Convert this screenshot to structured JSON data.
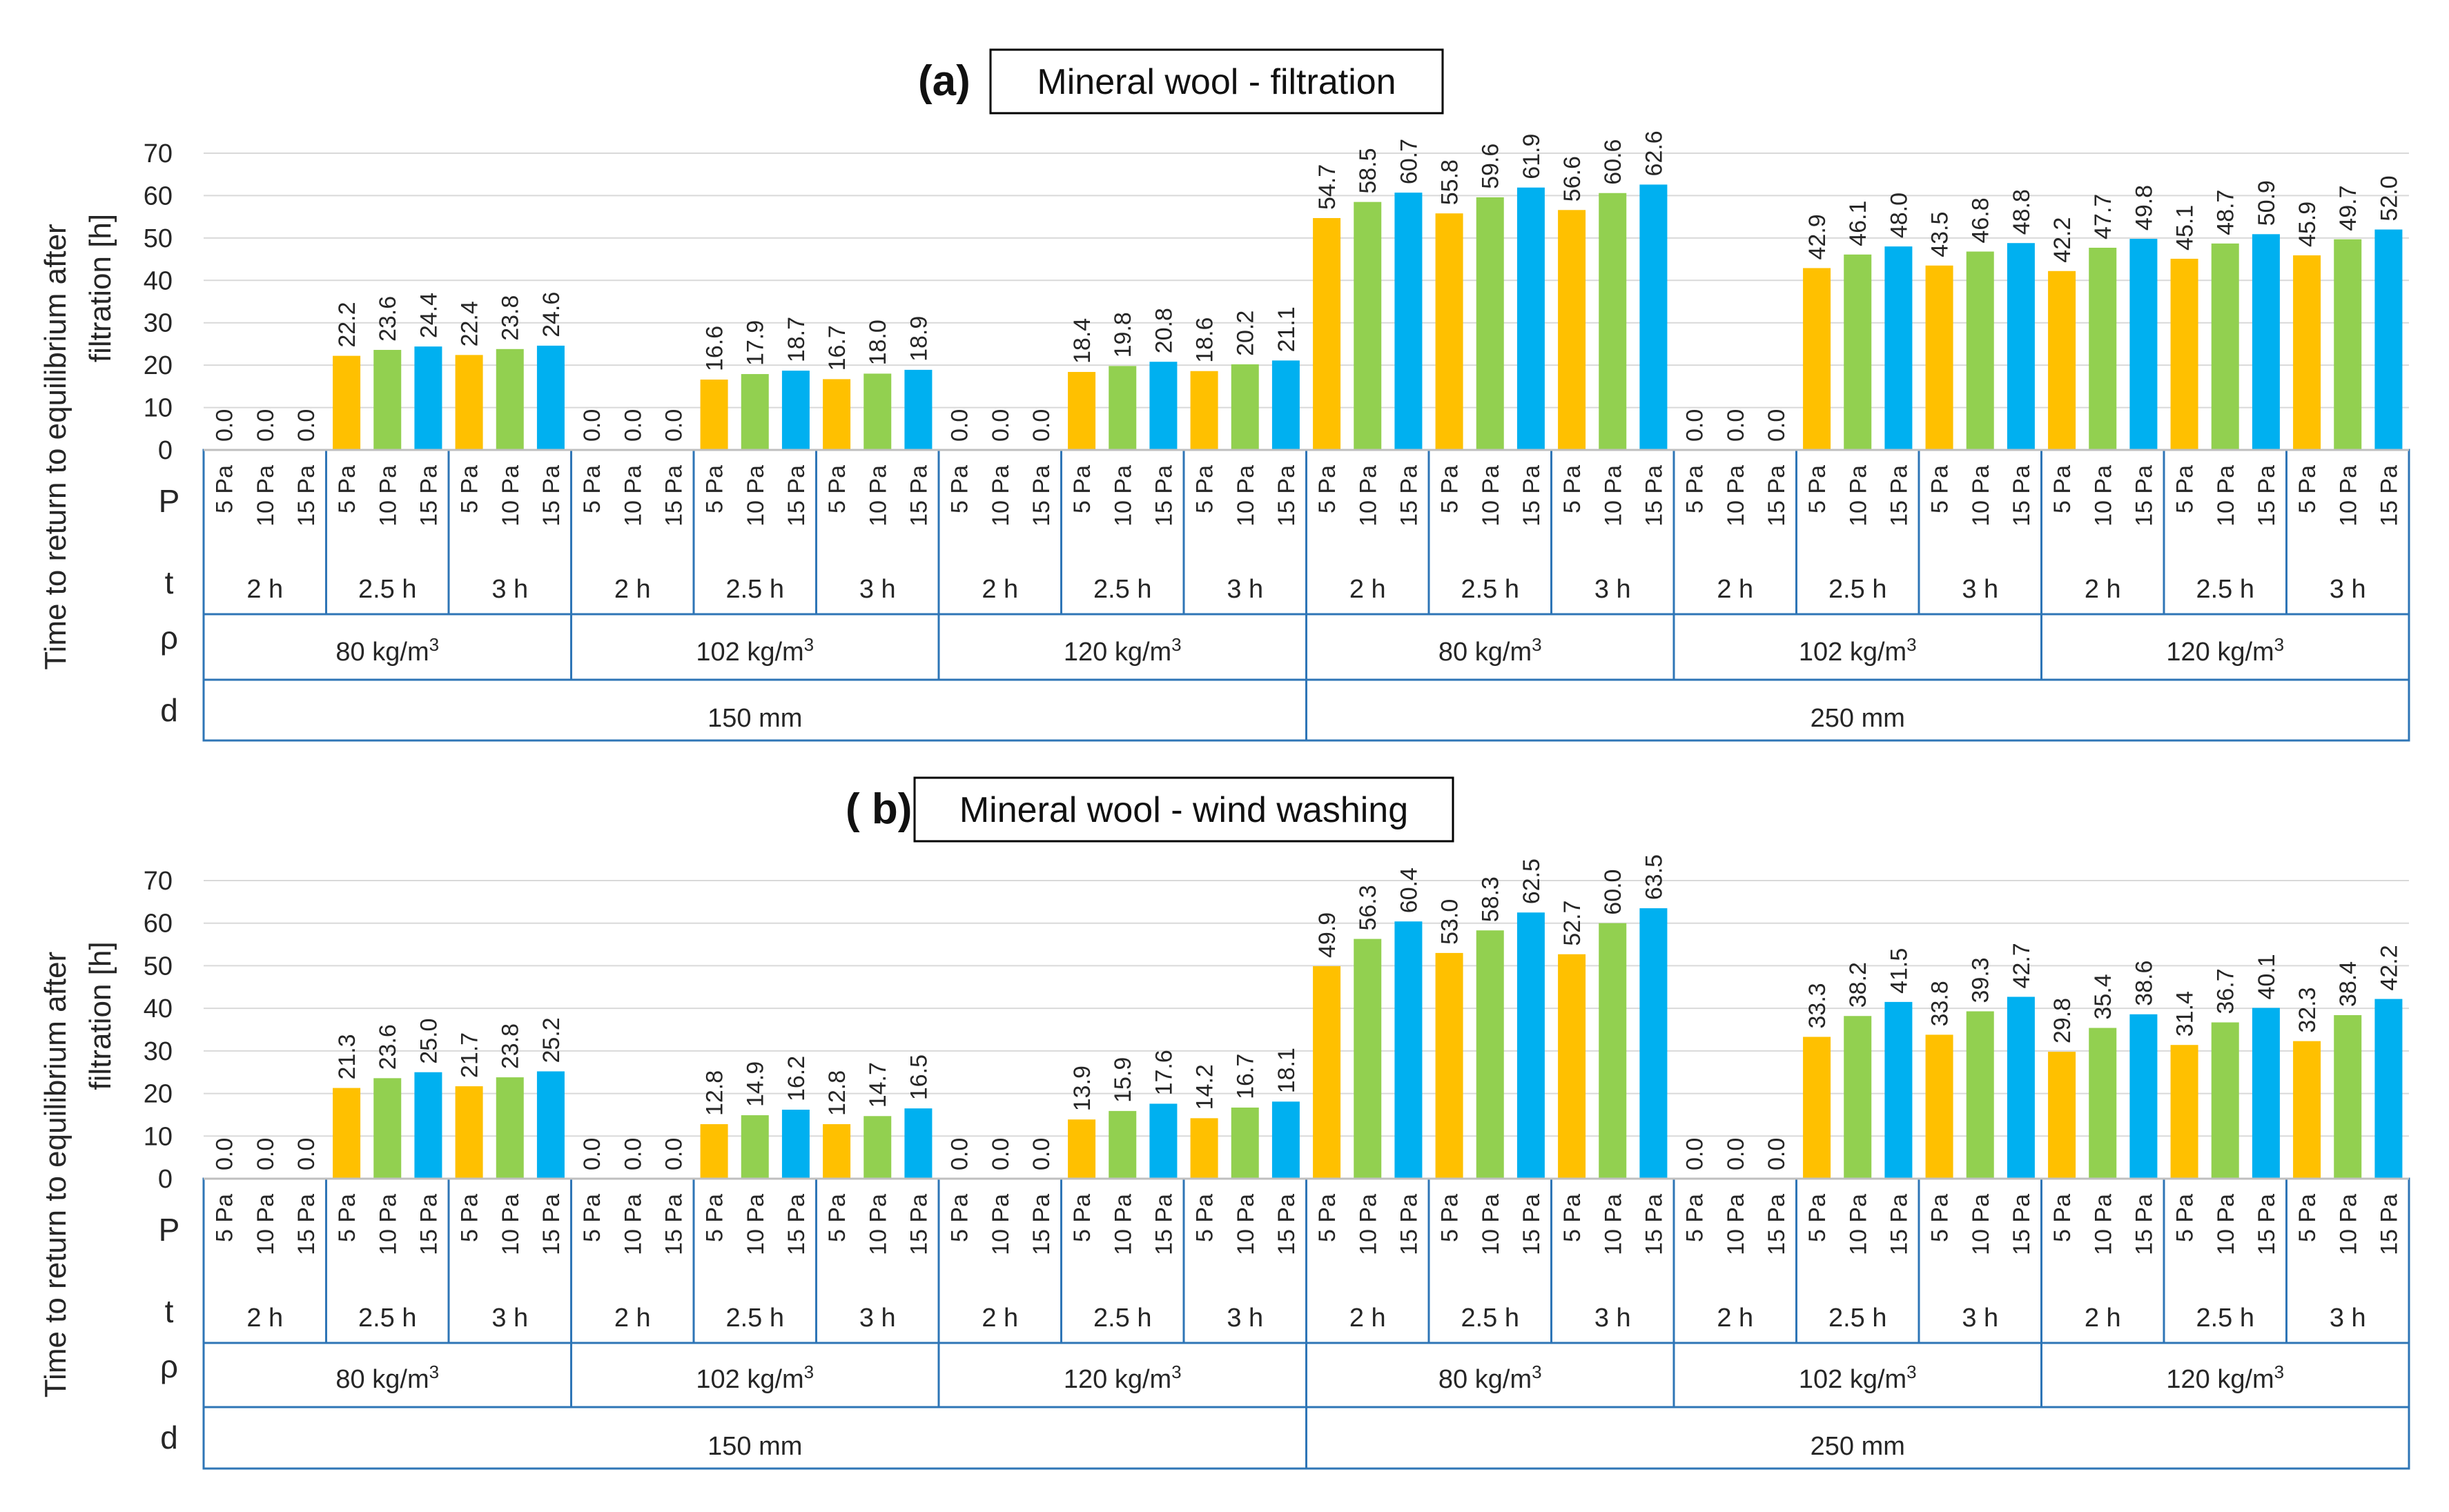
{
  "colors": {
    "p5": "#FFC000",
    "p10": "#92D050",
    "p15": "#00B0F0",
    "grid": "#D9D9D9",
    "table": "#2E75B6"
  },
  "row_labels": {
    "p": "P",
    "t": "t",
    "rho": "ρ",
    "d": "d"
  },
  "chart_data": [
    {
      "type": "bar",
      "letter": "(a)",
      "title": "Mineral wool - filtration",
      "ylabel_line1": "Time to return to equilibrium after",
      "ylabel_line2": "filtration [h]",
      "ylim": [
        0,
        70
      ],
      "yticks": [
        "0",
        "10",
        "20",
        "30",
        "40",
        "50",
        "60",
        "70"
      ],
      "pressures": [
        "5 Pa",
        "10 Pa",
        "15 Pa"
      ],
      "times": [
        "2 h",
        "2.5 h",
        "3 h",
        "2 h",
        "2.5 h",
        "3 h",
        "2 h",
        "2.5 h",
        "3 h",
        "2 h",
        "2.5 h",
        "3 h",
        "2 h",
        "2.5 h",
        "3 h",
        "2 h",
        "2.5 h",
        "3 h"
      ],
      "densities": [
        "80 kg/m",
        "102 kg/m",
        "120 kg/m",
        "80 kg/m",
        "102 kg/m",
        "120 kg/m"
      ],
      "density_unit_sup": "3",
      "thickness": [
        "150 mm",
        "250 mm"
      ],
      "values": [
        0.0,
        0.0,
        0.0,
        22.2,
        23.6,
        24.4,
        22.4,
        23.8,
        24.6,
        0.0,
        0.0,
        0.0,
        16.6,
        17.9,
        18.7,
        16.7,
        18.0,
        18.9,
        0.0,
        0.0,
        0.0,
        18.4,
        19.8,
        20.8,
        18.6,
        20.2,
        21.1,
        54.7,
        58.5,
        60.7,
        55.8,
        59.6,
        61.9,
        56.6,
        60.6,
        62.6,
        0.0,
        0.0,
        0.0,
        42.9,
        46.1,
        48.0,
        43.5,
        46.8,
        48.8,
        42.2,
        47.7,
        49.8,
        45.1,
        48.7,
        50.9,
        45.9,
        49.7,
        52.0
      ],
      "value_labels": [
        "0.0",
        "0.0",
        "0.0",
        "22.2",
        "23.6",
        "24.4",
        "22.4",
        "23.8",
        "24.6",
        "0.0",
        "0.0",
        "0.0",
        "16.6",
        "17.9",
        "18.7",
        "16.7",
        "18.0",
        "18.9",
        "0.0",
        "0.0",
        "0.0",
        "18.4",
        "19.8",
        "20.8",
        "18.6",
        "20.2",
        "21.1",
        "54.7",
        "58.5",
        "60.7",
        "55.8",
        "59.6",
        "61.9",
        "56.6",
        "60.6",
        "62.6",
        "0.0",
        "0.0",
        "0.0",
        "42.9",
        "46.1",
        "48.0",
        "43.5",
        "46.8",
        "48.8",
        "42.2",
        "47.7",
        "49.8",
        "45.1",
        "48.7",
        "50.9",
        "45.9",
        "49.7",
        "52.0"
      ]
    },
    {
      "type": "bar",
      "letter": "( b)",
      "title": "Mineral wool - wind washing",
      "ylabel_line1": "Time to return to equilibrium after",
      "ylabel_line2": "filtration [h]",
      "ylim": [
        0,
        70
      ],
      "yticks": [
        "0",
        "10",
        "20",
        "30",
        "40",
        "50",
        "60",
        "70"
      ],
      "pressures": [
        "5 Pa",
        "10 Pa",
        "15 Pa"
      ],
      "times": [
        "2 h",
        "2.5 h",
        "3 h",
        "2 h",
        "2.5 h",
        "3 h",
        "2 h",
        "2.5 h",
        "3 h",
        "2 h",
        "2.5 h",
        "3 h",
        "2 h",
        "2.5 h",
        "3 h",
        "2 h",
        "2.5 h",
        "3 h"
      ],
      "densities": [
        "80 kg/m",
        "102 kg/m",
        "120 kg/m",
        "80 kg/m",
        "102 kg/m",
        "120 kg/m"
      ],
      "density_unit_sup": "3",
      "thickness": [
        "150 mm",
        "250 mm"
      ],
      "values": [
        0.0,
        0.0,
        0.0,
        21.3,
        23.6,
        25.0,
        21.7,
        23.8,
        25.2,
        0.0,
        0.0,
        0.0,
        12.8,
        14.9,
        16.2,
        12.8,
        14.7,
        16.5,
        0.0,
        0.0,
        0.0,
        13.9,
        15.9,
        17.6,
        14.2,
        16.7,
        18.1,
        49.9,
        56.3,
        60.4,
        53.0,
        58.3,
        62.5,
        52.7,
        60.0,
        63.5,
        0.0,
        0.0,
        0.0,
        33.3,
        38.2,
        41.5,
        33.8,
        39.3,
        42.7,
        29.8,
        35.4,
        38.6,
        31.4,
        36.7,
        40.1,
        32.3,
        38.4,
        42.2
      ],
      "value_labels": [
        "0.0",
        "0.0",
        "0.0",
        "21.3",
        "23.6",
        "25.0",
        "21.7",
        "23.8",
        "25.2",
        "0.0",
        "0.0",
        "0.0",
        "12.8",
        "14.9",
        "16.2",
        "12.8",
        "14.7",
        "16.5",
        "0.0",
        "0.0",
        "0.0",
        "13.9",
        "15.9",
        "17.6",
        "14.2",
        "16.7",
        "18.1",
        "49.9",
        "56.3",
        "60.4",
        "53.0",
        "58.3",
        "62.5",
        "52.7",
        "60.0",
        "63.5",
        "0.0",
        "0.0",
        "0.0",
        "33.3",
        "38.2",
        "41.5",
        "33.8",
        "39.3",
        "42.7",
        "29.8",
        "35.4",
        "38.6",
        "31.4",
        "36.7",
        "40.1",
        "32.3",
        "38.4",
        "42.2"
      ]
    }
  ]
}
